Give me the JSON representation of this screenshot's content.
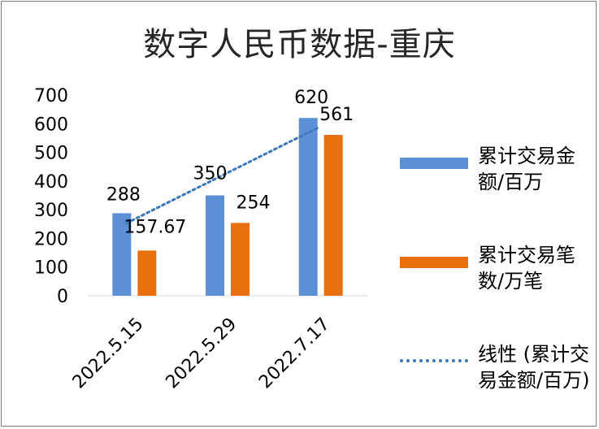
{
  "chart_data": {
    "type": "bar",
    "title": "数字人民币数据-重庆",
    "categories": [
      "2022.5.15",
      "2022.5.29",
      "2022.7.17"
    ],
    "ylim": [
      0,
      700
    ],
    "yticks": [
      "0",
      "100",
      "200",
      "300",
      "400",
      "500",
      "600",
      "700"
    ],
    "grid": false,
    "legend_position": "right",
    "series": [
      {
        "name": "累计交易金额/百万",
        "values": [
          288,
          350,
          620
        ],
        "labels": [
          "288",
          "350",
          "620"
        ],
        "color": "#5b8fd6"
      },
      {
        "name": "累计交易笔数/万笔",
        "values": [
          157.67,
          254,
          561
        ],
        "labels": [
          "157.67",
          "254",
          "561"
        ],
        "color": "#e8700f"
      }
    ],
    "trendline": {
      "name": "线性 (累计交易金额/百万)",
      "type": "linear",
      "of_series": 0,
      "color": "#3d78b8"
    }
  }
}
